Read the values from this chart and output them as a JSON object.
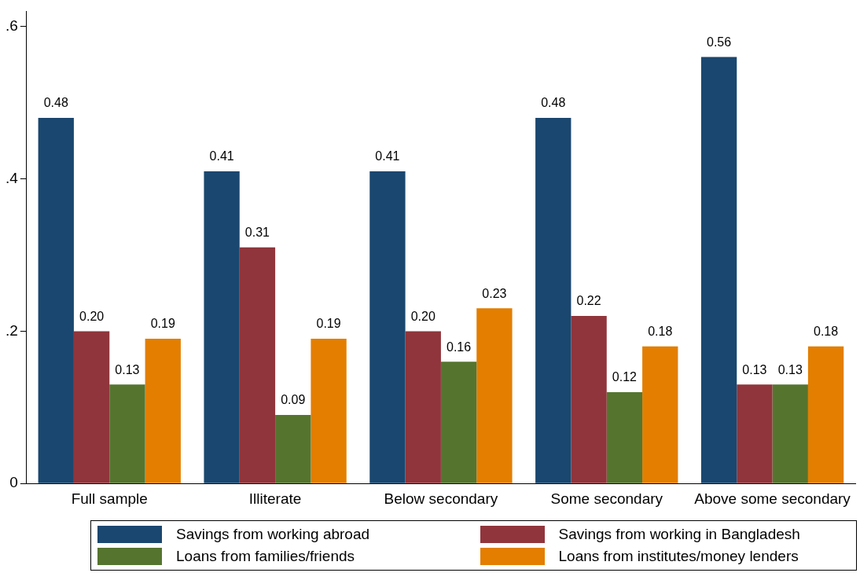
{
  "chart_data": {
    "type": "bar",
    "categories": [
      "Full sample",
      "Illiterate",
      "Below secondary",
      "Some secondary",
      "Above some secondary"
    ],
    "series": [
      {
        "name": "Savings from working abroad",
        "color": "#1a476f",
        "values": [
          0.48,
          0.41,
          0.41,
          0.48,
          0.56
        ],
        "value_labels": [
          "0.48",
          "0.41",
          "0.41",
          "0.48",
          "0.56"
        ]
      },
      {
        "name": "Savings from working in Bangladesh",
        "color": "#90353b",
        "values": [
          0.2,
          0.31,
          0.2,
          0.22,
          0.13
        ],
        "value_labels": [
          "0.20",
          "0.31",
          "0.20",
          "0.22",
          "0.13"
        ]
      },
      {
        "name": "Loans from families/friends",
        "color": "#55752f",
        "values": [
          0.13,
          0.09,
          0.16,
          0.12,
          0.13
        ],
        "value_labels": [
          "0.13",
          "0.09",
          "0.16",
          "0.12",
          "0.13"
        ]
      },
      {
        "name": "Loans from institutes/money lenders",
        "color": "#e37e00",
        "values": [
          0.19,
          0.19,
          0.23,
          0.18,
          0.18
        ],
        "value_labels": [
          "0.19",
          "0.19",
          "0.23",
          "0.18",
          "0.18"
        ]
      }
    ],
    "ylim": [
      0,
      0.62
    ],
    "yticks": [
      0,
      {
        "value": 0.2,
        "label": ".2"
      },
      {
        "value": 0.4,
        "label": ".4"
      },
      {
        "value": 0.6,
        "label": ".6"
      }
    ],
    "grid": false,
    "legend": "bottom"
  }
}
